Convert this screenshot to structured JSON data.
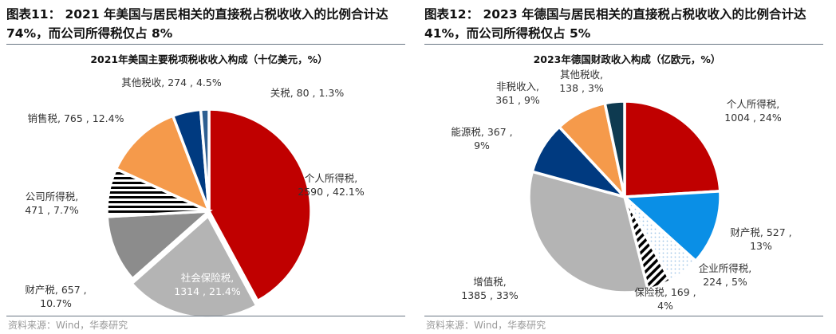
{
  "source": "资料来源：Wind，华泰研究",
  "chart_data": [
    {
      "type": "pie",
      "figure_title_lines": [
        "图表11：  2021 年美国与居民相关的直接税占税收收入的比例合计达",
        "74%，而公司所得税仅占 8%"
      ],
      "title": "2021年美国主要税项税收收入构成（十亿美元，%）",
      "slices": [
        {
          "name": "个人所得税",
          "value": 2590,
          "pct": 42.1,
          "color": "#c00000",
          "pattern": "solid",
          "label_lines": [
            "个人所得税,",
            "2590 , 42.1%"
          ]
        },
        {
          "name": "社会保险税",
          "value": 1314,
          "pct": 21.4,
          "color": "#b4b4b4",
          "pattern": "solid",
          "label_lines": [
            "社会保险税,",
            "1314 , 21.4%"
          ]
        },
        {
          "name": "财产税",
          "value": 657,
          "pct": 10.7,
          "color": "#8c8c8c",
          "pattern": "solid",
          "label_lines": [
            "财产税, 657 ,",
            "10.7%"
          ]
        },
        {
          "name": "公司所得税",
          "value": 471,
          "pct": 7.7,
          "color": "#000000",
          "pattern": "horizontal-stripes",
          "label_lines": [
            "公司所得税,",
            "471 , 7.7%"
          ]
        },
        {
          "name": "销售税",
          "value": 765,
          "pct": 12.4,
          "color": "#f59a4b",
          "pattern": "solid",
          "label_lines": [
            "销售税, 765 , 12.4%"
          ]
        },
        {
          "name": "其他税收",
          "value": 274,
          "pct": 4.5,
          "color": "#003a80",
          "pattern": "solid",
          "label_lines": [
            "其他税收, 274 , 4.5%"
          ]
        },
        {
          "name": "关税",
          "value": 80,
          "pct": 1.3,
          "color": "#2e5f91",
          "pattern": "solid",
          "label_lines": [
            "关税, 80 , 1.3%"
          ]
        }
      ]
    },
    {
      "type": "pie",
      "figure_title_lines": [
        "图表12：  2023 年德国与居民相关的直接税占税收收入的比例合计达",
        "41%，而公司所得税仅占 5%"
      ],
      "title": "2023年德国财政收入构成（亿欧元，%）",
      "slices": [
        {
          "name": "个人所得税",
          "value": 1004,
          "pct": 24,
          "color": "#c00000",
          "pattern": "solid",
          "label_lines": [
            "个人所得税,",
            "1004 , 24%"
          ]
        },
        {
          "name": "财产税",
          "value": 527,
          "pct": 13,
          "color": "#0a8fe6",
          "pattern": "solid",
          "label_lines": [
            "财产税, 527 ,",
            "13%"
          ]
        },
        {
          "name": "企业所得税",
          "value": 224,
          "pct": 5,
          "color": "#9dc3e6",
          "pattern": "dots",
          "label_lines": [
            "企业所得税,",
            "224 , 5%"
          ]
        },
        {
          "name": "保险税",
          "value": 169,
          "pct": 4,
          "color": "#000000",
          "pattern": "diagonal-stripes",
          "label_lines": [
            "保险税, 169 ,",
            "4%"
          ]
        },
        {
          "name": "增值税",
          "value": 1385,
          "pct": 33,
          "color": "#b4b4b4",
          "pattern": "solid",
          "label_lines": [
            "增值税,",
            "1385 , 33%"
          ]
        },
        {
          "name": "能源税",
          "value": 367,
          "pct": 9,
          "color": "#003a80",
          "pattern": "solid",
          "label_lines": [
            "能源税, 367 ,",
            "9%"
          ]
        },
        {
          "name": "非税收入",
          "value": 361,
          "pct": 9,
          "color": "#f59a4b",
          "pattern": "solid",
          "label_lines": [
            "非税收入,",
            "361 , 9%"
          ]
        },
        {
          "name": "其他税收",
          "value": 138,
          "pct": 3,
          "color": "#0e3a50",
          "pattern": "solid",
          "label_lines": [
            "其他税收,",
            "138 , 3%"
          ]
        }
      ]
    }
  ]
}
